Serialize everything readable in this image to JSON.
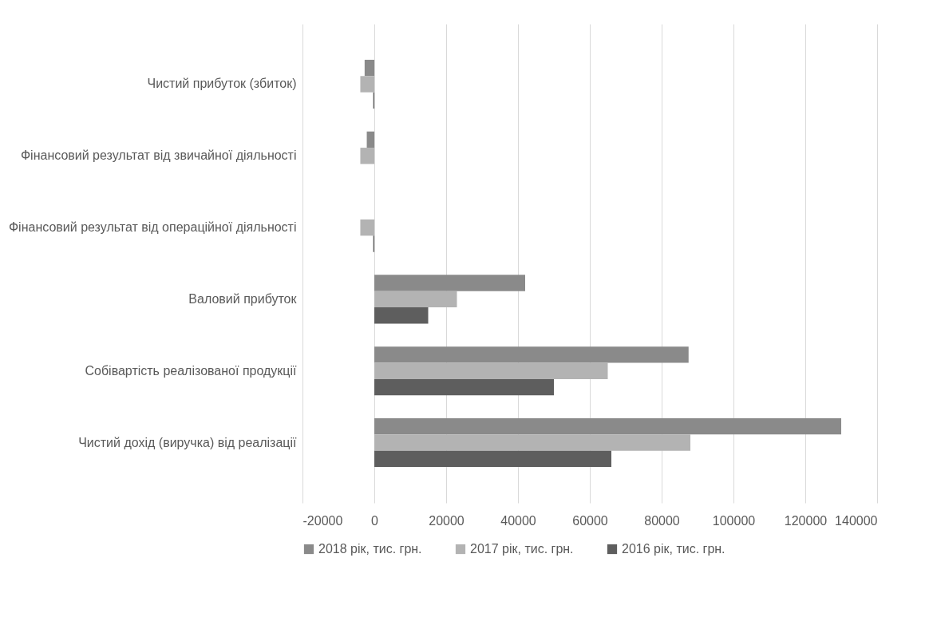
{
  "chart_data": {
    "type": "bar",
    "orientation": "horizontal",
    "categories": [
      "Чистий прибуток (збиток)",
      "Фінансовий результат від звичайної діяльності",
      "Фінансовий результат від операційної діяльності",
      "Валовий прибуток",
      "Собівартість реалізованої продукції",
      "Чистий дохід (виручка) від реалізації"
    ],
    "series": [
      {
        "name": "2018 рік, тис. грн.",
        "color": "#8a8a8a",
        "values": [
          -2700,
          -2100,
          0,
          42000,
          87500,
          130000
        ]
      },
      {
        "name": "2017 рік, тис. грн.",
        "color": "#b3b3b3",
        "values": [
          -3900,
          -3900,
          -3900,
          23000,
          65000,
          88000
        ]
      },
      {
        "name": "2016 рік, тис. грн.",
        "color": "#5e5e5e",
        "values": [
          -300,
          null,
          -300,
          15000,
          50000,
          66000
        ]
      }
    ],
    "xlim": [
      -20000,
      140000
    ],
    "xticks": [
      -20000,
      0,
      20000,
      40000,
      60000,
      80000,
      100000,
      120000,
      140000
    ],
    "grid": "x",
    "legend": "bottom"
  }
}
